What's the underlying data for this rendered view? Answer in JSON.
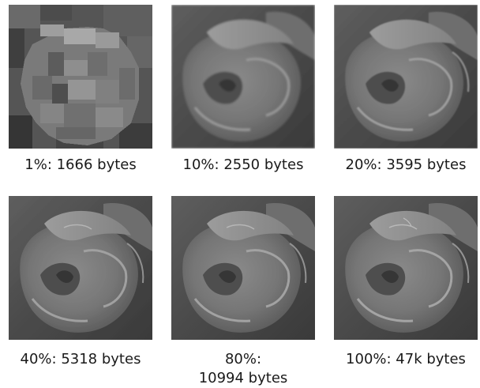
{
  "figure": {
    "panels": [
      {
        "percent": "1%",
        "caption": "1%:  1666 bytes",
        "quality": "blocky"
      },
      {
        "percent": "10%",
        "caption": "10%:  2550 bytes",
        "quality": "low"
      },
      {
        "percent": "20%",
        "caption": "20%:  3595 bytes",
        "quality": "medium"
      },
      {
        "percent": "40%",
        "caption": "40%:  5318 bytes",
        "quality": "good"
      },
      {
        "percent": "80%",
        "caption": "80%:\n10994 bytes",
        "quality": "high"
      },
      {
        "percent": "100%",
        "caption": "100%:  47k bytes",
        "quality": "full"
      }
    ]
  }
}
